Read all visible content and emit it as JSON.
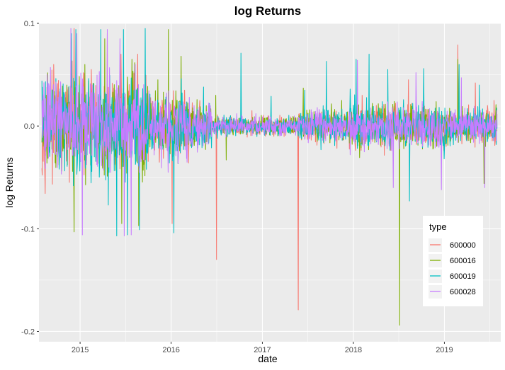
{
  "chart_data": {
    "type": "line",
    "title": "log Returns",
    "xlabel": "date",
    "ylabel": "log Returns",
    "xlim": [
      "2014-07-20",
      "2019-08-15"
    ],
    "ylim": [
      -0.21,
      0.1
    ],
    "x_ticks": [
      "2015",
      "2016",
      "2017",
      "2018",
      "2019"
    ],
    "y_ticks": [
      0.1,
      0.0,
      -0.1,
      -0.2
    ],
    "y_tick_labels": [
      "0.1",
      "0.0",
      "-0.1",
      "-0.2"
    ],
    "grid": true,
    "legend": {
      "title": "type",
      "position": "bottom-right"
    },
    "series": [
      {
        "name": "600000",
        "color": "#F8766D",
        "points": [
          [
            "2014-08-05",
            0.012
          ],
          [
            "2014-10-15",
            0.028
          ],
          [
            "2014-11-28",
            0.082
          ],
          [
            "2014-12-08",
            0.095
          ],
          [
            "2015-02-15",
            0.055
          ],
          [
            "2015-04-20",
            0.09
          ],
          [
            "2015-06-15",
            0.07
          ],
          [
            "2015-08-20",
            0.07
          ],
          [
            "2016-01-05",
            -0.095
          ],
          [
            "2016-02-25",
            0.035
          ],
          [
            "2016-07-01",
            -0.13
          ],
          [
            "2016-11-20",
            0.015
          ],
          [
            "2017-05-25",
            -0.179
          ],
          [
            "2018-02-05",
            0.03
          ],
          [
            "2018-08-10",
            0.045
          ],
          [
            "2019-02-25",
            0.079
          ],
          [
            "2019-05-06",
            0.042
          ],
          [
            "2019-07-20",
            0.025
          ]
        ]
      },
      {
        "name": "600016",
        "color": "#7CAE00",
        "points": [
          [
            "2014-08-05",
            0.015
          ],
          [
            "2014-09-25",
            0.028
          ],
          [
            "2014-11-28",
            0.085
          ],
          [
            "2014-12-08",
            -0.103
          ],
          [
            "2015-01-20",
            0.06
          ],
          [
            "2015-04-10",
            0.085
          ],
          [
            "2015-06-18",
            -0.095
          ],
          [
            "2015-07-28",
            0.065
          ],
          [
            "2015-08-25",
            -0.097
          ],
          [
            "2015-11-10",
            0.045
          ],
          [
            "2015-12-22",
            0.094
          ],
          [
            "2016-02-10",
            0.068
          ],
          [
            "2016-06-28",
            0.03
          ],
          [
            "2016-08-10",
            -0.033
          ],
          [
            "2017-06-15",
            0.037
          ],
          [
            "2017-11-15",
            0.025
          ],
          [
            "2018-07-05",
            -0.194
          ],
          [
            "2019-02-25",
            0.065
          ],
          [
            "2019-06-10",
            -0.056
          ]
        ]
      },
      {
        "name": "600019",
        "color": "#00BFC4",
        "points": [
          [
            "2014-08-01",
            0.044
          ],
          [
            "2014-10-10",
            -0.042
          ],
          [
            "2014-11-28",
            0.09
          ],
          [
            "2014-12-15",
            0.094
          ],
          [
            "2015-03-25",
            0.094
          ],
          [
            "2015-04-25",
            -0.077
          ],
          [
            "2015-05-28",
            -0.107
          ],
          [
            "2015-06-25",
            0.094
          ],
          [
            "2015-07-10",
            -0.106
          ],
          [
            "2015-08-28",
            -0.101
          ],
          [
            "2015-09-20",
            0.095
          ],
          [
            "2016-01-12",
            -0.104
          ],
          [
            "2016-02-12",
            0.046
          ],
          [
            "2016-05-10",
            0.038
          ],
          [
            "2016-10-08",
            0.071
          ],
          [
            "2017-02-05",
            0.029
          ],
          [
            "2017-06-20",
            0.035
          ],
          [
            "2017-09-15",
            0.063
          ],
          [
            "2017-12-20",
            0.036
          ],
          [
            "2018-01-12",
            0.065
          ],
          [
            "2018-03-05",
            0.07
          ],
          [
            "2018-05-20",
            0.055
          ],
          [
            "2018-08-15",
            -0.073
          ],
          [
            "2018-10-10",
            0.056
          ],
          [
            "2019-01-01",
            -0.032
          ],
          [
            "2019-03-01",
            0.06
          ],
          [
            "2019-05-22",
            0.04
          ],
          [
            "2019-07-28",
            -0.018
          ]
        ]
      },
      {
        "name": "600028",
        "color": "#C77CFF",
        "points": [
          [
            "2014-08-01",
            0.025
          ],
          [
            "2014-09-01",
            -0.02
          ],
          [
            "2014-11-25",
            0.095
          ],
          [
            "2014-12-20",
            0.09
          ],
          [
            "2015-01-10",
            -0.106
          ],
          [
            "2015-02-20",
            0.04
          ],
          [
            "2015-04-20",
            0.094
          ],
          [
            "2015-06-10",
            0.085
          ],
          [
            "2015-06-28",
            -0.107
          ],
          [
            "2015-07-25",
            -0.106
          ],
          [
            "2015-08-10",
            0.06
          ],
          [
            "2015-12-20",
            -0.045
          ],
          [
            "2016-03-15",
            0.028
          ],
          [
            "2016-09-20",
            0.012
          ],
          [
            "2017-08-10",
            0.018
          ],
          [
            "2017-12-20",
            -0.028
          ],
          [
            "2018-01-18",
            0.064
          ],
          [
            "2018-06-10",
            -0.06
          ],
          [
            "2018-09-10",
            0.052
          ],
          [
            "2018-12-20",
            -0.062
          ],
          [
            "2019-03-10",
            0.047
          ],
          [
            "2019-06-12",
            -0.06
          ],
          [
            "2019-07-30",
            0.015
          ]
        ]
      }
    ]
  }
}
